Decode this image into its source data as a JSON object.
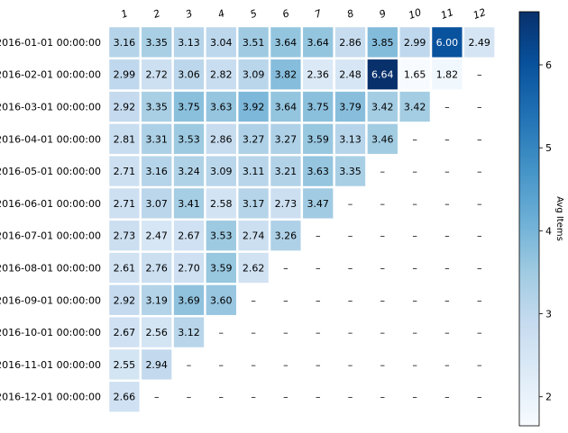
{
  "chart_data": {
    "type": "heatmap",
    "title": "",
    "xlabel": "",
    "ylabel": "",
    "columns": [
      "1",
      "2",
      "3",
      "4",
      "5",
      "6",
      "7",
      "8",
      "9",
      "10",
      "11",
      "12"
    ],
    "rows": [
      "2016-01-01 00:00:00",
      "2016-02-01 00:00:00",
      "2016-03-01 00:00:00",
      "2016-04-01 00:00:00",
      "2016-05-01 00:00:00",
      "2016-06-01 00:00:00",
      "2016-07-01 00:00:00",
      "2016-08-01 00:00:00",
      "2016-09-01 00:00:00",
      "2016-10-01 00:00:00",
      "2016-11-01 00:00:00",
      "2016-12-01 00:00:00"
    ],
    "values": [
      [
        3.16,
        3.35,
        3.13,
        3.04,
        3.51,
        3.64,
        3.64,
        2.86,
        3.85,
        2.99,
        6.0,
        2.49
      ],
      [
        2.99,
        2.72,
        3.06,
        2.82,
        3.09,
        3.82,
        2.36,
        2.48,
        6.64,
        1.65,
        1.82,
        null
      ],
      [
        2.92,
        3.35,
        3.75,
        3.63,
        3.92,
        3.64,
        3.75,
        3.79,
        3.42,
        3.42,
        null,
        null
      ],
      [
        2.81,
        3.31,
        3.53,
        2.86,
        3.27,
        3.27,
        3.59,
        3.13,
        3.46,
        null,
        null,
        null
      ],
      [
        2.71,
        3.16,
        3.24,
        3.09,
        3.11,
        3.21,
        3.63,
        3.35,
        null,
        null,
        null,
        null
      ],
      [
        2.71,
        3.07,
        3.41,
        2.58,
        3.17,
        2.73,
        3.47,
        null,
        null,
        null,
        null,
        null
      ],
      [
        2.73,
        2.47,
        2.67,
        3.53,
        2.74,
        3.26,
        null,
        null,
        null,
        null,
        null,
        null
      ],
      [
        2.61,
        2.76,
        2.7,
        3.59,
        2.62,
        null,
        null,
        null,
        null,
        null,
        null,
        null
      ],
      [
        2.92,
        3.19,
        3.69,
        3.6,
        null,
        null,
        null,
        null,
        null,
        null,
        null,
        null
      ],
      [
        2.67,
        2.56,
        3.12,
        null,
        null,
        null,
        null,
        null,
        null,
        null,
        null,
        null
      ],
      [
        2.55,
        2.94,
        null,
        null,
        null,
        null,
        null,
        null,
        null,
        null,
        null,
        null
      ],
      [
        2.66,
        null,
        null,
        null,
        null,
        null,
        null,
        null,
        null,
        null,
        null,
        null
      ]
    ],
    "missing_label": "–",
    "colormap": "Blues",
    "colors": [
      "#f7fbff",
      "#deebf7",
      "#c6dbef",
      "#9ecae1",
      "#6baed6",
      "#4292c6",
      "#2171b5",
      "#08519c",
      "#08306b"
    ],
    "vmin": 1.65,
    "vmax": 6.64,
    "colorbar": {
      "label": "Avg Items",
      "ticks": [
        "2",
        "3",
        "4",
        "5",
        "6"
      ]
    }
  }
}
